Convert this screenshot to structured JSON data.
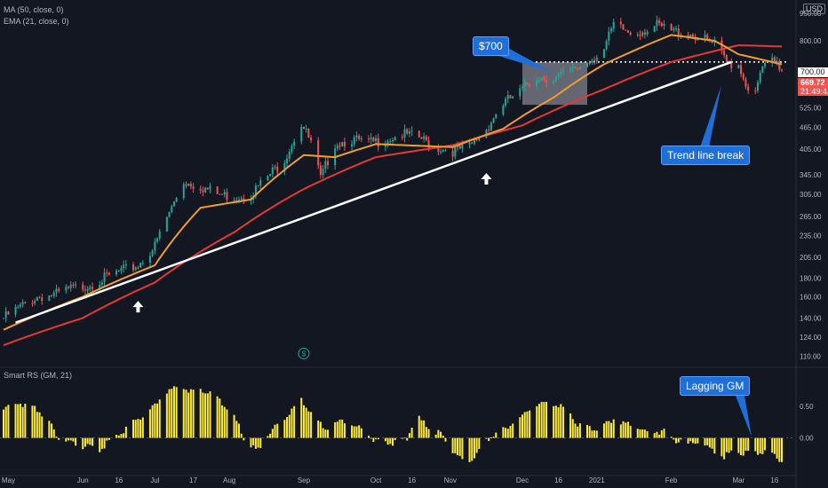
{
  "legend": {
    "ma_label": "MA (50, close, 0)",
    "ema_label": "EMA (21, close, 0)",
    "rs_label": "Smart RS (GM, 21)",
    "currency": "USD"
  },
  "callouts": {
    "price_target": "$700",
    "trend_break": "Trend line break",
    "lagging": "Lagging GM"
  },
  "price_tags": {
    "level": "700.00",
    "last_price": "669.72",
    "countdown": "21:49:41"
  },
  "colors": {
    "background": "#131722",
    "up": "#26a69a",
    "down": "#ef5350",
    "ma": "#e53935",
    "ema": "#f29b2f",
    "trendline": "#ffffff",
    "rs_bars": "#ffeb3b",
    "callout": "#1e6fd9"
  },
  "icons": [
    "up-arrow-icon",
    "up-arrow-icon",
    "dividend-icon"
  ],
  "chart_data": [
    {
      "type": "candlestick",
      "title": "",
      "y_scale": "log",
      "ylim": [
        105,
        1000
      ],
      "y_ticks": [
        "1000.00",
        "950.00",
        "800.00",
        "700.00",
        "600.00",
        "525.00",
        "465.00",
        "405.00",
        "345.00",
        "305.00",
        "265.00",
        "235.00",
        "205.00",
        "180.00",
        "160.00",
        "140.00",
        "124.00",
        "110.00"
      ],
      "x_ticks": [
        "May",
        "Jun",
        "16",
        "Jul",
        "17",
        "Aug",
        "Sep",
        "Oct",
        "16",
        "Nov",
        "Dec",
        "16",
        "2021",
        "Feb",
        "Mar",
        "16"
      ],
      "x_tick_dates": [
        "2020-05-01",
        "2020-06-01",
        "2020-06-16",
        "2020-07-01",
        "2020-07-17",
        "2020-08-01",
        "2020-09-01",
        "2020-10-01",
        "2020-10-16",
        "2020-11-01",
        "2020-12-01",
        "2020-12-16",
        "2021-01-01",
        "2021-02-01",
        "2021-03-01",
        "2021-03-16"
      ],
      "date_range": [
        "2020-04-29",
        "2021-03-19"
      ],
      "close_anchors": [
        [
          "2020-04-29",
          140
        ],
        [
          "2020-05-06",
          150
        ],
        [
          "2020-05-13",
          160
        ],
        [
          "2020-05-20",
          162
        ],
        [
          "2020-05-27",
          168
        ],
        [
          "2020-06-03",
          172
        ],
        [
          "2020-06-10",
          180
        ],
        [
          "2020-06-17",
          188
        ],
        [
          "2020-06-24",
          195
        ],
        [
          "2020-07-01",
          220
        ],
        [
          "2020-07-08",
          280
        ],
        [
          "2020-07-13",
          330
        ],
        [
          "2020-07-20",
          320
        ],
        [
          "2020-07-27",
          305
        ],
        [
          "2020-08-03",
          300
        ],
        [
          "2020-08-10",
          305
        ],
        [
          "2020-08-17",
          340
        ],
        [
          "2020-08-24",
          380
        ],
        [
          "2020-08-31",
          475
        ],
        [
          "2020-09-04",
          420
        ],
        [
          "2020-09-08",
          335
        ],
        [
          "2020-09-14",
          420
        ],
        [
          "2020-09-21",
          430
        ],
        [
          "2020-09-28",
          420
        ],
        [
          "2020-10-05",
          430
        ],
        [
          "2020-10-12",
          445
        ],
        [
          "2020-10-19",
          435
        ],
        [
          "2020-10-26",
          410
        ],
        [
          "2020-11-02",
          400
        ],
        [
          "2020-11-09",
          410
        ],
        [
          "2020-11-16",
          460
        ],
        [
          "2020-11-23",
          540
        ],
        [
          "2020-11-30",
          580
        ],
        [
          "2020-12-07",
          640
        ],
        [
          "2020-12-14",
          630
        ],
        [
          "2020-12-21",
          660
        ],
        [
          "2020-12-28",
          700
        ],
        [
          "2021-01-04",
          760
        ],
        [
          "2021-01-08",
          880
        ],
        [
          "2021-01-15",
          840
        ],
        [
          "2021-01-22",
          860
        ],
        [
          "2021-01-26",
          880
        ],
        [
          "2021-02-01",
          850
        ],
        [
          "2021-02-08",
          840
        ],
        [
          "2021-02-12",
          820
        ],
        [
          "2021-02-19",
          780
        ],
        [
          "2021-02-24",
          700
        ],
        [
          "2021-03-01",
          690
        ],
        [
          "2021-03-04",
          610
        ],
        [
          "2021-03-08",
          570
        ],
        [
          "2021-03-11",
          680
        ],
        [
          "2021-03-15",
          700
        ],
        [
          "2021-03-19",
          669.72
        ]
      ],
      "ma_50": [
        [
          "2020-04-29",
          118
        ],
        [
          "2020-06-01",
          140
        ],
        [
          "2020-07-01",
          175
        ],
        [
          "2020-08-03",
          240
        ],
        [
          "2020-09-01",
          315
        ],
        [
          "2020-10-01",
          385
        ],
        [
          "2020-11-02",
          415
        ],
        [
          "2020-12-01",
          470
        ],
        [
          "2021-01-04",
          590
        ],
        [
          "2021-02-01",
          700
        ],
        [
          "2021-03-01",
          778
        ],
        [
          "2021-03-19",
          772
        ]
      ],
      "ema_21": [
        [
          "2020-04-29",
          130
        ],
        [
          "2020-06-01",
          160
        ],
        [
          "2020-07-01",
          195
        ],
        [
          "2020-07-20",
          280
        ],
        [
          "2020-08-10",
          295
        ],
        [
          "2020-09-01",
          390
        ],
        [
          "2020-09-14",
          385
        ],
        [
          "2020-10-01",
          418
        ],
        [
          "2020-11-02",
          410
        ],
        [
          "2020-11-23",
          460
        ],
        [
          "2020-12-14",
          560
        ],
        [
          "2021-01-04",
          690
        ],
        [
          "2021-02-01",
          830
        ],
        [
          "2021-02-19",
          800
        ],
        [
          "2021-03-01",
          735
        ],
        [
          "2021-03-19",
          690
        ]
      ],
      "trendline": [
        [
          "2020-05-04",
          136
        ],
        [
          "2021-02-26",
          700
        ]
      ],
      "annotations": [
        {
          "type": "rectangle",
          "from": [
            "2020-12-01",
            535
          ],
          "to": [
            "2020-12-28",
            700
          ]
        },
        {
          "type": "dotted_line",
          "from": [
            "2020-12-01",
            700
          ],
          "to": [
            "2021-03-19",
            700
          ]
        },
        {
          "type": "arrow_up",
          "at": [
            "2020-06-24",
            150
          ]
        },
        {
          "type": "arrow_up",
          "at": [
            "2020-11-16",
            335
          ]
        },
        {
          "type": "dividend_marker",
          "at": [
            "2020-09-01",
            112
          ]
        }
      ]
    },
    {
      "type": "bar",
      "title": "Smart RS (GM, 21)",
      "ylim": [
        -0.4,
        0.95
      ],
      "y_ticks": [
        "0.50",
        "0.00"
      ],
      "rs_anchors": [
        [
          "2020-04-29",
          0.45
        ],
        [
          "2020-05-05",
          0.55
        ],
        [
          "2020-05-12",
          0.5
        ],
        [
          "2020-05-19",
          0.2
        ],
        [
          "2020-05-22",
          0.0
        ],
        [
          "2020-05-28",
          -0.1
        ],
        [
          "2020-06-04",
          -0.15
        ],
        [
          "2020-06-08",
          -0.2
        ],
        [
          "2020-06-12",
          -0.05
        ],
        [
          "2020-06-16",
          0.05
        ],
        [
          "2020-06-22",
          0.25
        ],
        [
          "2020-06-29",
          0.45
        ],
        [
          "2020-07-06",
          0.75
        ],
        [
          "2020-07-10",
          0.8
        ],
        [
          "2020-07-17",
          0.75
        ],
        [
          "2020-07-24",
          0.7
        ],
        [
          "2020-07-31",
          0.5
        ],
        [
          "2020-08-05",
          0.2
        ],
        [
          "2020-08-08",
          -0.1
        ],
        [
          "2020-08-13",
          -0.2
        ],
        [
          "2020-08-18",
          0.1
        ],
        [
          "2020-08-24",
          0.3
        ],
        [
          "2020-08-31",
          0.6
        ],
        [
          "2020-09-05",
          0.35
        ],
        [
          "2020-09-10",
          0.15
        ],
        [
          "2020-09-17",
          0.3
        ],
        [
          "2020-09-24",
          0.15
        ],
        [
          "2020-10-01",
          -0.05
        ],
        [
          "2020-10-08",
          -0.1
        ],
        [
          "2020-10-14",
          0.0
        ],
        [
          "2020-10-18",
          0.35
        ],
        [
          "2020-10-22",
          0.2
        ],
        [
          "2020-10-28",
          0.05
        ],
        [
          "2020-11-02",
          -0.2
        ],
        [
          "2020-11-06",
          -0.35
        ],
        [
          "2020-11-10",
          -0.35
        ],
        [
          "2020-11-14",
          -0.15
        ],
        [
          "2020-11-18",
          0.05
        ],
        [
          "2020-11-24",
          0.15
        ],
        [
          "2020-12-01",
          0.35
        ],
        [
          "2020-12-08",
          0.55
        ],
        [
          "2020-12-15",
          0.55
        ],
        [
          "2020-12-20",
          0.4
        ],
        [
          "2020-12-24",
          0.2
        ],
        [
          "2021-01-01",
          0.15
        ],
        [
          "2021-01-08",
          0.3
        ],
        [
          "2021-01-15",
          0.2
        ],
        [
          "2021-01-22",
          0.1
        ],
        [
          "2021-01-29",
          0.1
        ],
        [
          "2021-02-03",
          -0.05
        ],
        [
          "2021-02-08",
          -0.1
        ],
        [
          "2021-02-13",
          -0.05
        ],
        [
          "2021-02-18",
          -0.2
        ],
        [
          "2021-02-23",
          -0.3
        ],
        [
          "2021-02-27",
          -0.2
        ],
        [
          "2021-03-03",
          -0.25
        ],
        [
          "2021-03-08",
          -0.25
        ],
        [
          "2021-03-12",
          -0.2
        ],
        [
          "2021-03-16",
          -0.3
        ],
        [
          "2021-03-19",
          -0.35
        ]
      ]
    }
  ]
}
